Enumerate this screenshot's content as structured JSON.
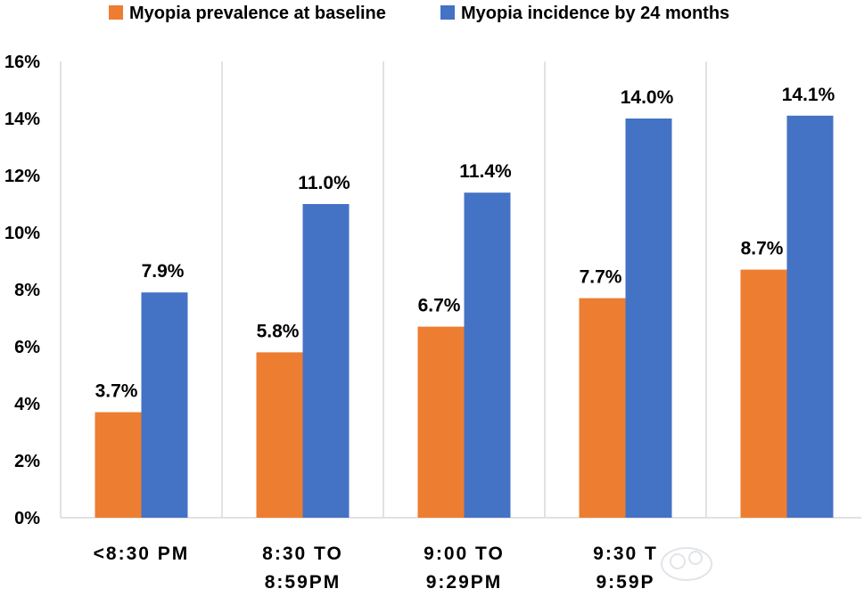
{
  "chart_data": {
    "type": "bar",
    "categories": [
      [
        "<8:30 PM"
      ],
      [
        "8:30 TO",
        "8:59PM"
      ],
      [
        "9:00 TO",
        "9:29PM"
      ],
      [
        "9:30 T",
        "9:59P"
      ],
      [
        ""
      ]
    ],
    "series": [
      {
        "name": "Myopia prevalence at baseline",
        "color": "#ED7D31",
        "values": [
          3.7,
          5.8,
          6.7,
          7.7,
          8.7
        ],
        "labels": [
          "3.7%",
          "5.8%",
          "6.7%",
          "7.7%",
          "8.7%"
        ]
      },
      {
        "name": "Myopia incidence by 24 months",
        "color": "#4472C4",
        "values": [
          7.9,
          11.0,
          11.4,
          14.0,
          14.1
        ],
        "labels": [
          "7.9%",
          "11.0%",
          "11.4%",
          "14.0%",
          "14.1%"
        ]
      }
    ],
    "y_ticks": [
      "0%",
      "2%",
      "4%",
      "6%",
      "8%",
      "10%",
      "12%",
      "14%",
      "16%"
    ],
    "ylim": [
      0,
      16
    ],
    "y_step": 2,
    "grid": "vertical separators between categories",
    "legend_position": "top"
  },
  "watermark": {
    "icon": "cloud-logo-icon"
  }
}
